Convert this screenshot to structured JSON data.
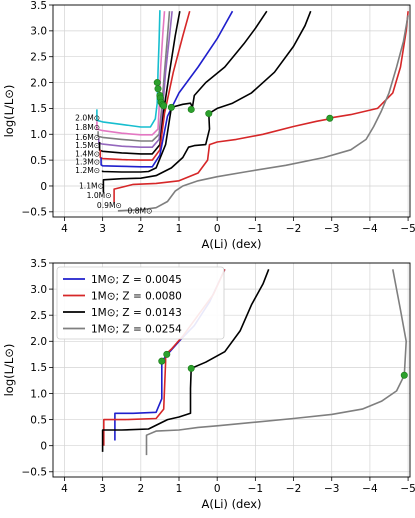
{
  "chart_data": [
    {
      "type": "line",
      "xlabel": "A(Li) (dex)",
      "ylabel": "log(L/L⊙)",
      "xlim": [
        4.3,
        -5.05
      ],
      "ylim": [
        -0.6,
        3.5
      ],
      "xticks": [
        4,
        3,
        2,
        1,
        0,
        -1,
        -2,
        -3,
        -4,
        -5
      ],
      "xtick_labels": [
        "4",
        "3",
        "2",
        "1",
        "0",
        "−1",
        "−2",
        "−3",
        "−4",
        "−5"
      ],
      "yticks": [
        -0.5,
        0.0,
        0.5,
        1.0,
        1.5,
        2.0,
        2.5,
        3.0,
        3.5
      ],
      "ytick_labels": [
        "−0.5",
        "0",
        "0.5",
        "1.0",
        "1.5",
        "2.0",
        "2.5",
        "3.0",
        "3.5"
      ],
      "grid": true,
      "series": [
        {
          "name": "2.0M⊙",
          "color": "#17becf",
          "label_at": [
            3.72,
            1.31
          ],
          "points": [
            [
              3.15,
              1.48
            ],
            [
              3.15,
              1.27
            ],
            [
              3.0,
              1.24
            ],
            [
              2.5,
              1.19
            ],
            [
              2.0,
              1.14
            ],
            [
              1.75,
              1.14
            ],
            [
              1.62,
              1.3
            ],
            [
              1.57,
              1.6
            ],
            [
              1.55,
              2.2
            ],
            [
              1.52,
              2.8
            ],
            [
              1.5,
              3.4
            ]
          ],
          "markers": [
            [
              1.57,
              2.0
            ]
          ]
        },
        {
          "name": "1.8M⊙",
          "color": "#e377c2",
          "label_at": [
            3.72,
            1.13
          ],
          "points": [
            [
              3.15,
              1.25
            ],
            [
              3.15,
              1.1
            ],
            [
              3.0,
              1.07
            ],
            [
              2.5,
              1.02
            ],
            [
              2.0,
              0.99
            ],
            [
              1.7,
              0.99
            ],
            [
              1.55,
              1.1
            ],
            [
              1.52,
              1.5
            ],
            [
              1.48,
              2.3
            ],
            [
              1.42,
              3.0
            ],
            [
              1.38,
              3.38
            ]
          ],
          "markers": [
            [
              1.55,
              1.88
            ]
          ]
        },
        {
          "name": "1.6M⊙",
          "color": "#7f7f7f",
          "label_at": [
            3.72,
            0.94
          ],
          "points": [
            [
              3.12,
              1.06
            ],
            [
              3.12,
              0.96
            ],
            [
              3.0,
              0.94
            ],
            [
              2.5,
              0.9
            ],
            [
              2.0,
              0.87
            ],
            [
              1.7,
              0.87
            ],
            [
              1.52,
              1.0
            ],
            [
              1.46,
              1.45
            ],
            [
              1.38,
              2.2
            ],
            [
              1.3,
              2.9
            ],
            [
              1.25,
              3.38
            ]
          ],
          "markers": [
            [
              1.5,
              1.75
            ]
          ]
        },
        {
          "name": "1.5M⊙",
          "color": "#9467bd",
          "label_at": [
            3.72,
            0.78
          ],
          "points": [
            [
              3.1,
              0.92
            ],
            [
              3.1,
              0.83
            ],
            [
              3.0,
              0.81
            ],
            [
              2.5,
              0.77
            ],
            [
              2.0,
              0.75
            ],
            [
              1.7,
              0.75
            ],
            [
              1.52,
              0.9
            ],
            [
              1.44,
              1.4
            ],
            [
              1.35,
              2.2
            ],
            [
              1.25,
              2.9
            ],
            [
              1.18,
              3.38
            ]
          ],
          "markers": [
            [
              1.49,
              1.7
            ]
          ]
        },
        {
          "name": "1.4M⊙",
          "color": "#000000",
          "label_at": [
            3.72,
            0.62
          ],
          "points": [
            [
              3.08,
              0.85
            ],
            [
              3.08,
              0.69
            ],
            [
              3.0,
              0.67
            ],
            [
              2.5,
              0.64
            ],
            [
              2.0,
              0.62
            ],
            [
              1.7,
              0.62
            ],
            [
              1.5,
              0.8
            ],
            [
              1.4,
              1.45
            ],
            [
              1.25,
              2.2
            ],
            [
              1.1,
              2.9
            ],
            [
              0.98,
              3.38
            ]
          ],
          "markers": [
            [
              1.47,
              1.62
            ]
          ]
        },
        {
          "name": "1.3M⊙",
          "color": "#d62728",
          "label_at": [
            3.72,
            0.46
          ],
          "points": [
            [
              3.06,
              0.7
            ],
            [
              3.06,
              0.55
            ],
            [
              3.0,
              0.53
            ],
            [
              2.5,
              0.51
            ],
            [
              2.0,
              0.5
            ],
            [
              1.7,
              0.5
            ],
            [
              1.5,
              0.7
            ],
            [
              1.38,
              1.4
            ],
            [
              1.15,
              2.2
            ],
            [
              0.9,
              2.9
            ],
            [
              0.72,
              3.38
            ]
          ],
          "markers": [
            [
              1.43,
              1.57
            ]
          ]
        },
        {
          "name": "1.2M⊙",
          "color": "#1f1fcc",
          "label_at": [
            3.72,
            0.3
          ],
          "points": [
            [
              3.04,
              0.55
            ],
            [
              3.04,
              0.41
            ],
            [
              3.0,
              0.39
            ],
            [
              2.5,
              0.38
            ],
            [
              2.0,
              0.37
            ],
            [
              1.7,
              0.37
            ],
            [
              1.5,
              0.6
            ],
            [
              1.3,
              1.35
            ],
            [
              1.0,
              1.8
            ],
            [
              0.5,
              2.3
            ],
            [
              0.0,
              2.85
            ],
            [
              -0.4,
              3.38
            ]
          ],
          "markers": [
            [
              1.4,
              1.55
            ]
          ]
        },
        {
          "name": "1.1M⊙",
          "color": "#000000",
          "label_at": [
            3.62,
            0.0
          ],
          "points": [
            [
              3.0,
              0.3
            ],
            [
              3.0,
              0.28
            ],
            [
              2.5,
              0.27
            ],
            [
              2.0,
              0.27
            ],
            [
              1.8,
              0.28
            ],
            [
              1.6,
              0.35
            ],
            [
              1.35,
              0.8
            ],
            [
              1.2,
              1.52
            ],
            [
              0.9,
              1.58
            ],
            [
              0.7,
              1.6
            ],
            [
              0.65,
              1.52
            ],
            [
              0.6,
              1.75
            ],
            [
              0.3,
              2.0
            ],
            [
              -0.2,
              2.3
            ],
            [
              -0.7,
              2.75
            ],
            [
              -1.0,
              3.05
            ],
            [
              -1.3,
              3.38
            ]
          ],
          "markers": [
            [
              1.2,
              1.52
            ],
            [
              0.68,
              1.48
            ]
          ]
        },
        {
          "name": "1.0M⊙",
          "color": "#000000",
          "label_at": [
            3.42,
            -0.18
          ],
          "points": [
            [
              2.98,
              -0.12
            ],
            [
              2.98,
              0.12
            ],
            [
              2.5,
              0.14
            ],
            [
              2.0,
              0.15
            ],
            [
              1.6,
              0.2
            ],
            [
              1.2,
              0.35
            ],
            [
              0.9,
              0.55
            ],
            [
              0.75,
              0.75
            ],
            [
              0.6,
              0.78
            ],
            [
              0.3,
              0.8
            ],
            [
              0.2,
              1.1
            ],
            [
              0.22,
              1.4
            ],
            [
              0.0,
              1.5
            ],
            [
              -0.4,
              1.6
            ],
            [
              -0.9,
              1.8
            ],
            [
              -1.5,
              2.2
            ],
            [
              -2.0,
              2.7
            ],
            [
              -2.3,
              3.1
            ],
            [
              -2.45,
              3.38
            ]
          ],
          "markers": [
            [
              0.22,
              1.4
            ]
          ]
        },
        {
          "name": "0.9M⊙",
          "color": "#d62728",
          "label_at": [
            3.15,
            -0.38
          ],
          "points": [
            [
              2.7,
              -0.32
            ],
            [
              2.7,
              -0.06
            ],
            [
              2.2,
              0.03
            ],
            [
              1.6,
              0.05
            ],
            [
              1.0,
              0.1
            ],
            [
              0.5,
              0.25
            ],
            [
              0.25,
              0.5
            ],
            [
              0.2,
              0.8
            ],
            [
              0.0,
              0.85
            ],
            [
              -0.5,
              0.9
            ],
            [
              -1.2,
              1.0
            ],
            [
              -2.0,
              1.15
            ],
            [
              -2.6,
              1.25
            ],
            [
              -2.95,
              1.3
            ],
            [
              -3.0,
              1.32
            ],
            [
              -3.5,
              1.38
            ],
            [
              -4.2,
              1.5
            ],
            [
              -4.6,
              1.8
            ],
            [
              -4.8,
              2.3
            ],
            [
              -4.95,
              3.0
            ],
            [
              -5.0,
              3.38
            ]
          ],
          "markers": [
            [
              -2.95,
              1.31
            ]
          ]
        },
        {
          "name": "0.8M⊙",
          "color": "#7f7f7f",
          "label_at": [
            2.35,
            -0.48
          ],
          "points": [
            [
              2.6,
              -0.48
            ],
            [
              2.0,
              -0.46
            ],
            [
              1.6,
              -0.42
            ],
            [
              1.3,
              -0.3
            ],
            [
              1.1,
              -0.1
            ],
            [
              0.9,
              0.0
            ],
            [
              0.5,
              0.1
            ],
            [
              0.0,
              0.18
            ],
            [
              -0.8,
              0.28
            ],
            [
              -1.8,
              0.4
            ],
            [
              -2.8,
              0.55
            ],
            [
              -3.5,
              0.7
            ],
            [
              -3.9,
              0.9
            ],
            [
              -4.1,
              1.15
            ],
            [
              -4.3,
              1.45
            ],
            [
              -4.5,
              1.8
            ],
            [
              -4.7,
              2.3
            ],
            [
              -4.88,
              2.8
            ],
            [
              -5.0,
              3.3
            ]
          ],
          "markers": []
        }
      ]
    },
    {
      "type": "line",
      "xlabel": "A(Li) (dex)",
      "ylabel": "log(L/L⊙)",
      "xlim": [
        4.3,
        -5.05
      ],
      "ylim": [
        -0.6,
        3.5
      ],
      "xticks": [
        4,
        3,
        2,
        1,
        0,
        -1,
        -2,
        -3,
        -4,
        -5
      ],
      "xtick_labels": [
        "4",
        "3",
        "2",
        "1",
        "0",
        "−1",
        "−2",
        "−3",
        "−4",
        "−5"
      ],
      "yticks": [
        -0.5,
        0.0,
        0.5,
        1.0,
        1.5,
        2.0,
        2.5,
        3.0,
        3.5
      ],
      "ytick_labels": [
        "−0.5",
        "0",
        "0.5",
        "1.0",
        "1.5",
        "2.0",
        "2.5",
        "3.0",
        "3.5"
      ],
      "grid": true,
      "legend": "top-left",
      "series": [
        {
          "name": "1M⊙; Z = 0.0045",
          "color": "#1f1fcc",
          "points": [
            [
              2.68,
              0.1
            ],
            [
              2.68,
              0.62
            ],
            [
              2.2,
              0.62
            ],
            [
              1.6,
              0.64
            ],
            [
              1.45,
              0.9
            ],
            [
              1.45,
              1.5
            ],
            [
              1.45,
              1.62
            ],
            [
              1.3,
              1.75
            ],
            [
              1.0,
              2.0
            ],
            [
              0.6,
              2.3
            ],
            [
              0.2,
              2.75
            ],
            [
              -0.2,
              3.38
            ]
          ],
          "markers": [
            [
              1.45,
              1.62
            ]
          ]
        },
        {
          "name": "1M⊙; Z = 0.0080",
          "color": "#d62728",
          "points": [
            [
              2.97,
              0.0
            ],
            [
              2.97,
              0.5
            ],
            [
              2.4,
              0.5
            ],
            [
              1.6,
              0.52
            ],
            [
              1.4,
              0.7
            ],
            [
              1.35,
              1.6
            ],
            [
              1.35,
              1.75
            ],
            [
              1.2,
              1.85
            ],
            [
              0.9,
              2.1
            ],
            [
              0.5,
              2.5
            ],
            [
              0.1,
              2.9
            ],
            [
              -0.2,
              3.38
            ]
          ],
          "markers": [
            [
              1.32,
              1.75
            ]
          ]
        },
        {
          "name": "1M⊙; Z = 0.0143",
          "color": "#000000",
          "points": [
            [
              3.0,
              -0.12
            ],
            [
              3.0,
              0.3
            ],
            [
              2.5,
              0.3
            ],
            [
              1.8,
              0.32
            ],
            [
              1.3,
              0.5
            ],
            [
              1.0,
              0.55
            ],
            [
              0.7,
              0.62
            ],
            [
              0.7,
              1.1
            ],
            [
              0.68,
              1.48
            ],
            [
              0.3,
              1.6
            ],
            [
              -0.2,
              1.8
            ],
            [
              -0.6,
              2.2
            ],
            [
              -0.9,
              2.7
            ],
            [
              -1.2,
              3.1
            ],
            [
              -1.35,
              3.38
            ]
          ],
          "markers": [
            [
              0.68,
              1.48
            ]
          ]
        },
        {
          "name": "1M⊙; Z = 0.0254",
          "color": "#7f7f7f",
          "points": [
            [
              1.85,
              -0.18
            ],
            [
              1.85,
              0.2
            ],
            [
              1.6,
              0.28
            ],
            [
              1.0,
              0.3
            ],
            [
              0.5,
              0.35
            ],
            [
              0.0,
              0.38
            ],
            [
              -1.0,
              0.45
            ],
            [
              -2.0,
              0.52
            ],
            [
              -3.0,
              0.6
            ],
            [
              -3.8,
              0.7
            ],
            [
              -4.3,
              0.85
            ],
            [
              -4.7,
              1.05
            ],
            [
              -4.9,
              1.35
            ],
            [
              -4.95,
              2.0
            ],
            [
              -4.8,
              2.6
            ],
            [
              -4.6,
              3.38
            ]
          ],
          "markers": [
            [
              -4.9,
              1.35
            ]
          ]
        }
      ]
    }
  ]
}
